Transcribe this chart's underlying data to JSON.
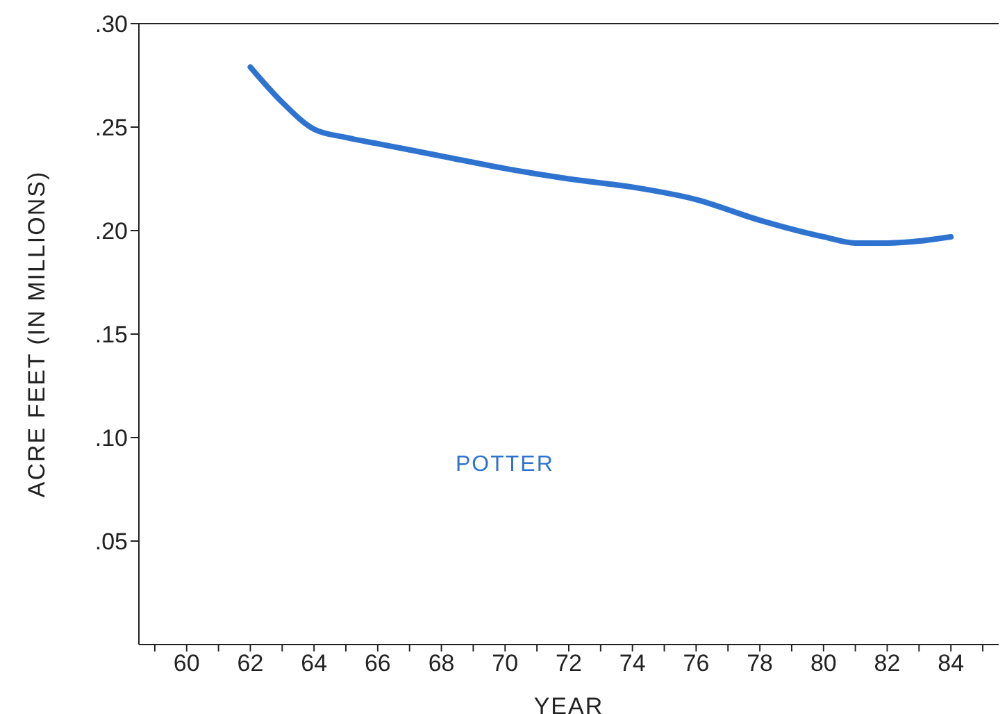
{
  "chart_data": {
    "type": "line",
    "xlabel": "YEAR",
    "ylabel": "ACRE FEET (IN MILLIONS)",
    "x": [
      62,
      63,
      64,
      65,
      66,
      68,
      70,
      72,
      74,
      76,
      78,
      80,
      81,
      82,
      84
    ],
    "series": [
      {
        "name": "POTTER",
        "color": "#2f73d0",
        "values": [
          0.279,
          0.262,
          0.249,
          0.245,
          0.242,
          0.236,
          0.23,
          0.225,
          0.221,
          0.215,
          0.205,
          0.197,
          0.194,
          0.194,
          0.197
        ]
      }
    ],
    "xlim": [
      58.5,
      85.5
    ],
    "xticks": [
      {
        "value": 59,
        "label": null
      },
      60,
      {
        "value": 61,
        "label": null
      },
      62,
      {
        "value": 63,
        "label": null
      },
      64,
      {
        "value": 65,
        "label": null
      },
      66,
      {
        "value": 67,
        "label": null
      },
      68,
      {
        "value": 69,
        "label": null
      },
      70,
      {
        "value": 71,
        "label": null
      },
      72,
      {
        "value": 73,
        "label": null
      },
      74,
      {
        "value": 75,
        "label": null
      },
      76,
      {
        "value": 77,
        "label": null
      },
      78,
      {
        "value": 79,
        "label": null
      },
      80,
      {
        "value": 81,
        "label": null
      },
      82,
      {
        "value": 83,
        "label": null
      },
      84,
      {
        "value": 85,
        "label": null
      }
    ],
    "ylim": [
      0,
      0.3
    ],
    "yticks": [
      {
        "value": 0.05,
        "label": ".05"
      },
      {
        "value": 0.1,
        "label": ".10"
      },
      {
        "value": 0.15,
        "label": ".15"
      },
      {
        "value": 0.2,
        "label": ".20"
      },
      {
        "value": 0.25,
        "label": ".25"
      },
      {
        "value": 0.3,
        "label": ".30"
      }
    ],
    "grid": false,
    "marker": "none",
    "line_style": "solid"
  }
}
